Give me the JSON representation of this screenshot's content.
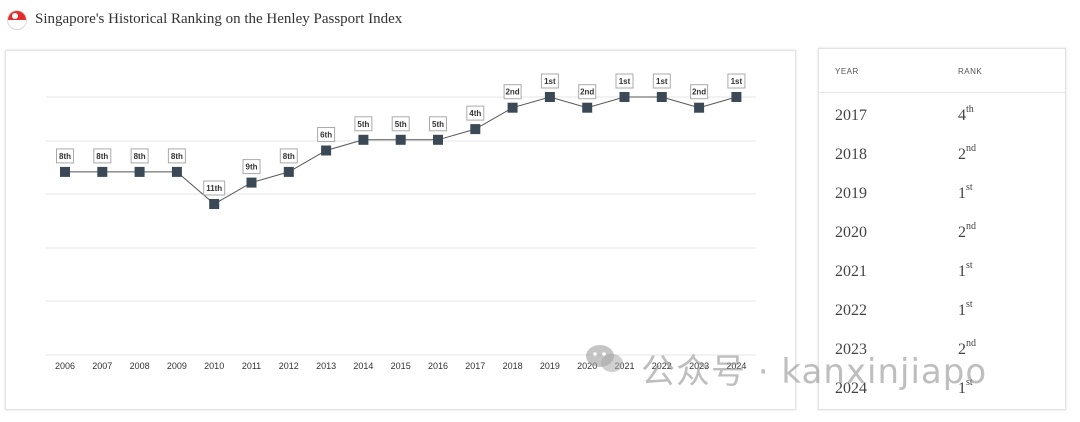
{
  "header": {
    "title": "Singapore's Historical Ranking on the Henley Passport Index"
  },
  "colors": {
    "line": "#555555",
    "marker": "#3b4856",
    "grid": "#e4e4e4",
    "flag_red": "#e32d2d"
  },
  "chart_data": {
    "type": "line",
    "title": "",
    "xlabel": "",
    "ylabel": "",
    "x": [
      "2006",
      "2007",
      "2008",
      "2009",
      "2010",
      "2011",
      "2012",
      "2013",
      "2014",
      "2015",
      "2016",
      "2017",
      "2018",
      "2019",
      "2020",
      "2021",
      "2022",
      "2023",
      "2024"
    ],
    "series": [
      {
        "values": [
          8,
          8,
          8,
          8,
          11,
          9,
          8,
          6,
          5,
          5,
          5,
          4,
          2,
          1,
          2,
          1,
          1,
          2,
          1
        ],
        "labels": [
          "8th",
          "8th",
          "8th",
          "8th",
          "11th",
          "9th",
          "8th",
          "6th",
          "5th",
          "5th",
          "5th",
          "4th",
          "2nd",
          "1st",
          "2nd",
          "1st",
          "1st",
          "2nd",
          "1st"
        ]
      }
    ],
    "y_reversed": true,
    "grid": "horizontal",
    "legend": "none"
  },
  "table": {
    "headers": {
      "year": "YEAR",
      "rank": "RANK"
    },
    "rows": [
      {
        "year": "2017",
        "num": "4",
        "suffix": "th"
      },
      {
        "year": "2018",
        "num": "2",
        "suffix": "nd"
      },
      {
        "year": "2019",
        "num": "1",
        "suffix": "st"
      },
      {
        "year": "2020",
        "num": "2",
        "suffix": "nd"
      },
      {
        "year": "2021",
        "num": "1",
        "suffix": "st"
      },
      {
        "year": "2022",
        "num": "1",
        "suffix": "st"
      },
      {
        "year": "2023",
        "num": "2",
        "suffix": "nd"
      },
      {
        "year": "2024",
        "num": "1",
        "suffix": "st"
      }
    ]
  },
  "watermark": {
    "text": "公众号 · kanxinjiapo",
    "icon": "wechat-icon"
  }
}
